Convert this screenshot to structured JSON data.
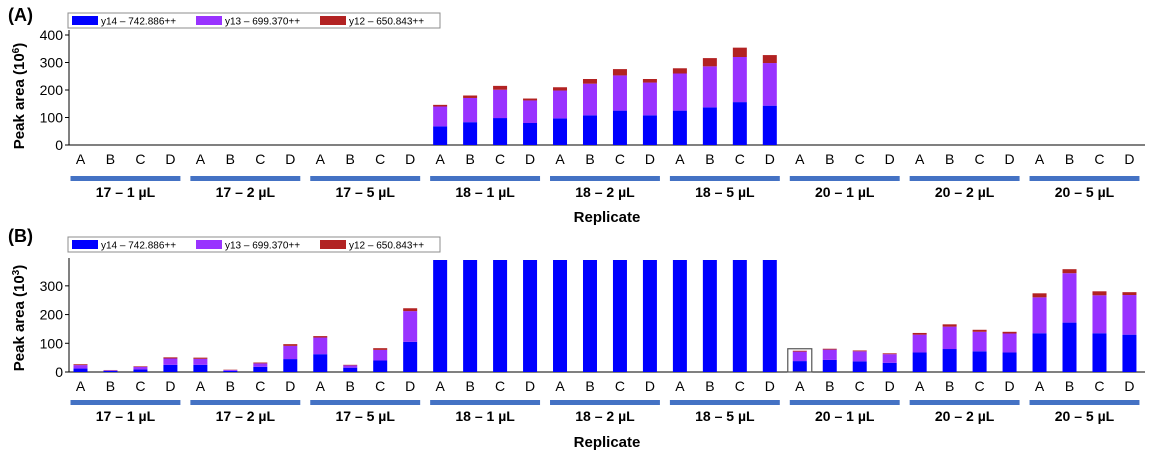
{
  "colors": {
    "y14": "#0000ff",
    "y13": "#9933ff",
    "y12": "#b22222",
    "group_bar": "#4472c4",
    "axis": "#000000",
    "legend_border": "#8c8c8c"
  },
  "chart_data": [
    {
      "panel": "(A)",
      "type": "bar",
      "stacked": true,
      "ylabel_main": "Peak area (10",
      "ylabel_exp": "6",
      "ylabel_close": ")",
      "xlabel": "Replicate",
      "ylim": [
        0,
        400
      ],
      "yticks": [
        0,
        100,
        200,
        300,
        400
      ],
      "legend": [
        "y14 – 742.886++",
        "y13 – 699.370++",
        "y12 – 650.843++"
      ],
      "categories": [
        "A",
        "B",
        "C",
        "D",
        "A",
        "B",
        "C",
        "D",
        "A",
        "B",
        "C",
        "D",
        "A",
        "B",
        "C",
        "D",
        "A",
        "B",
        "C",
        "D",
        "A",
        "B",
        "C",
        "D",
        "A",
        "B",
        "C",
        "D",
        "A",
        "B",
        "C",
        "D",
        "A",
        "B",
        "C",
        "D"
      ],
      "groups": [
        "17 – 1 µL",
        "17 – 2 µL",
        "17 – 5 µL",
        "18 – 1 µL",
        "18 – 2 µL",
        "18 – 5 µL",
        "20 – 1 µL",
        "20 – 2 µL",
        "20 – 5 µL"
      ],
      "series": [
        {
          "name": "y14 – 742.886++",
          "values": [
            0,
            0,
            0,
            0,
            0,
            0,
            0,
            0,
            0,
            0,
            0,
            0,
            68,
            83,
            98,
            80,
            97,
            108,
            125,
            108,
            125,
            137,
            156,
            143,
            0,
            0,
            0,
            0,
            0,
            0,
            0,
            0,
            0,
            0,
            0,
            0
          ]
        },
        {
          "name": "y13 – 699.370++",
          "values": [
            0,
            0,
            0,
            0,
            0,
            0,
            0,
            0,
            0,
            0,
            0,
            0,
            72,
            88,
            103,
            82,
            101,
            115,
            128,
            119,
            135,
            149,
            164,
            155,
            0,
            0,
            0,
            0,
            0,
            0,
            0,
            0,
            0,
            0,
            0,
            0
          ]
        },
        {
          "name": "y12 – 650.843++",
          "values": [
            0,
            0,
            0,
            0,
            0,
            0,
            0,
            0,
            0,
            0,
            0,
            0,
            6,
            9,
            14,
            7,
            12,
            17,
            23,
            13,
            19,
            30,
            34,
            29,
            0,
            0,
            0,
            0,
            0,
            0,
            0,
            0,
            0,
            0,
            0,
            0
          ]
        }
      ]
    },
    {
      "panel": "(B)",
      "type": "bar",
      "stacked": true,
      "ylabel_main": "Peak area (10",
      "ylabel_exp": "3",
      "ylabel_close": ")",
      "xlabel": "Replicate",
      "ylim": [
        0,
        390
      ],
      "yticks": [
        0,
        100,
        200,
        300
      ],
      "legend": [
        "y14 – 742.886++",
        "y13 – 699.370++",
        "y12 – 650.843++"
      ],
      "categories": [
        "A",
        "B",
        "C",
        "D",
        "A",
        "B",
        "C",
        "D",
        "A",
        "B",
        "C",
        "D",
        "A",
        "B",
        "C",
        "D",
        "A",
        "B",
        "C",
        "D",
        "A",
        "B",
        "C",
        "D",
        "A",
        "B",
        "C",
        "D",
        "A",
        "B",
        "C",
        "D",
        "A",
        "B",
        "C",
        "D"
      ],
      "groups": [
        "17 – 1 µL",
        "17 – 2 µL",
        "17 – 5 µL",
        "18 – 1 µL",
        "18 – 2 µL",
        "18 – 5 µL",
        "20 – 1 µL",
        "20 – 2 µL",
        "20 – 5 µL"
      ],
      "clipped_at_top": [
        12,
        13,
        14,
        15,
        16,
        17,
        18,
        19,
        20,
        21,
        22,
        23
      ],
      "highlighted_bar": 24,
      "series": [
        {
          "name": "y14 – 742.886++",
          "values": [
            12,
            4,
            9,
            25,
            25,
            4,
            18,
            45,
            62,
            15,
            40,
            105,
            390,
            390,
            390,
            390,
            390,
            390,
            390,
            390,
            390,
            390,
            390,
            390,
            38,
            42,
            37,
            32,
            68,
            80,
            72,
            68,
            135,
            172,
            135,
            130
          ]
        },
        {
          "name": "y13 – 699.370++",
          "values": [
            12,
            2,
            9,
            22,
            21,
            3,
            12,
            46,
            58,
            8,
            37,
            107,
            0,
            0,
            0,
            0,
            0,
            0,
            0,
            0,
            0,
            0,
            0,
            0,
            33,
            36,
            35,
            30,
            62,
            78,
            68,
            66,
            125,
            172,
            132,
            138
          ]
        },
        {
          "name": "y12 – 650.843++",
          "values": [
            3,
            1,
            2,
            4,
            4,
            1,
            3,
            6,
            5,
            2,
            6,
            10,
            0,
            0,
            0,
            0,
            0,
            0,
            0,
            0,
            0,
            0,
            0,
            0,
            3,
            3,
            3,
            3,
            6,
            8,
            7,
            6,
            14,
            14,
            14,
            10
          ]
        }
      ]
    }
  ]
}
